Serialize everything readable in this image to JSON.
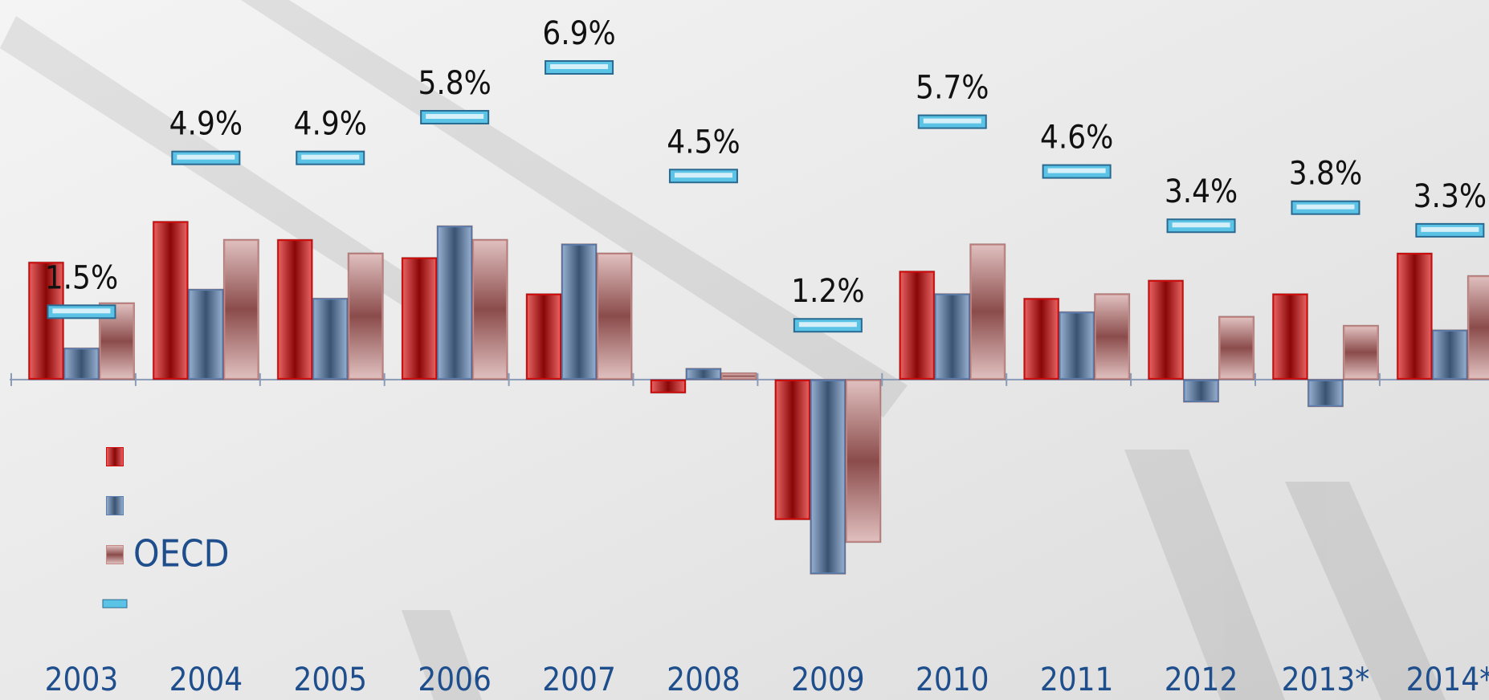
{
  "chart_data": {
    "type": "bar",
    "categories": [
      "2003",
      "2004",
      "2005",
      "2006",
      "2007",
      "2008",
      "2009",
      "2010",
      "2011",
      "2012",
      "2013*",
      "2014*"
    ],
    "series": [
      {
        "color": "#d40a0a",
        "values": [
          2.6,
          3.5,
          3.1,
          2.7,
          1.9,
          -0.3,
          -3.1,
          2.4,
          1.8,
          2.2,
          1.9,
          2.8
        ]
      },
      {
        "color": "#5a7fb0",
        "values": [
          0.7,
          2.0,
          1.8,
          3.4,
          3.0,
          0.25,
          -4.3,
          1.9,
          1.5,
          -0.5,
          -0.6,
          1.1
        ]
      },
      {
        "name": "OECD",
        "color": "#c48a88",
        "values": [
          1.7,
          3.1,
          2.8,
          3.1,
          2.8,
          0.15,
          -3.6,
          3.0,
          1.9,
          1.4,
          1.2,
          2.3
        ]
      },
      {
        "color": "#5bc3e6",
        "mark": "dash",
        "values": [
          1.5,
          4.9,
          4.9,
          5.8,
          6.9,
          4.5,
          1.2,
          5.7,
          4.6,
          3.4,
          3.8,
          3.3
        ],
        "value_labels": [
          "1.5%",
          "4.9%",
          "4.9%",
          "5.8%",
          "6.9%",
          "4.5%",
          "1.2%",
          "5.7%",
          "4.6%",
          "3.4%",
          "3.8%",
          "3.3%"
        ]
      }
    ],
    "ylim": [
      -6,
      8
    ]
  }
}
